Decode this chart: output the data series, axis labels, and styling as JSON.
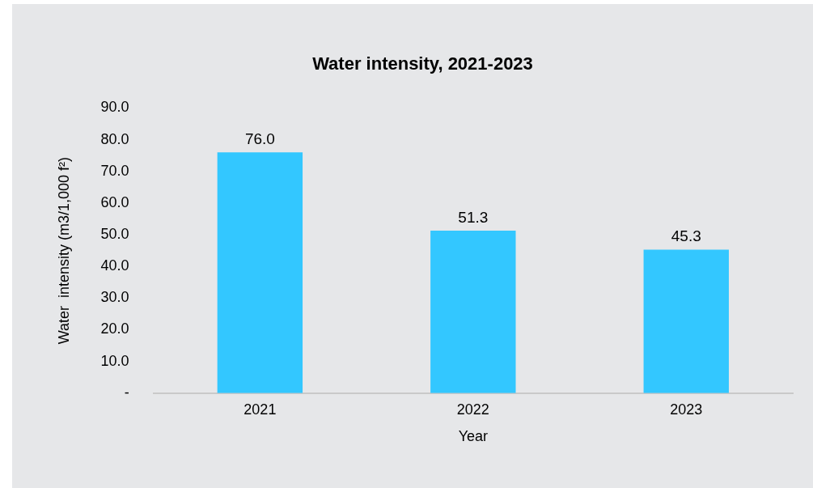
{
  "chart_data": {
    "type": "bar",
    "title": "Water intensity, 2021-2023",
    "xlabel": "Year",
    "ylabel": "Water  intensity (m3/1,000 f²)",
    "categories": [
      "2021",
      "2022",
      "2023"
    ],
    "values": [
      76.0,
      51.3,
      45.3
    ],
    "value_labels": [
      "76.0",
      "51.3",
      "45.3"
    ],
    "color": "#33c7ff",
    "ylim": [
      0,
      90
    ],
    "yticks": [
      {
        "value": 0,
        "label": "-"
      },
      {
        "value": 10,
        "label": "10.0"
      },
      {
        "value": 20,
        "label": "20.0"
      },
      {
        "value": 30,
        "label": "30.0"
      },
      {
        "value": 40,
        "label": "40.0"
      },
      {
        "value": 50,
        "label": "50.0"
      },
      {
        "value": 60,
        "label": "60.0"
      },
      {
        "value": 70,
        "label": "70.0"
      },
      {
        "value": 80,
        "label": "80.0"
      },
      {
        "value": 90,
        "label": "90.0"
      }
    ],
    "grid": false,
    "legend": false
  }
}
